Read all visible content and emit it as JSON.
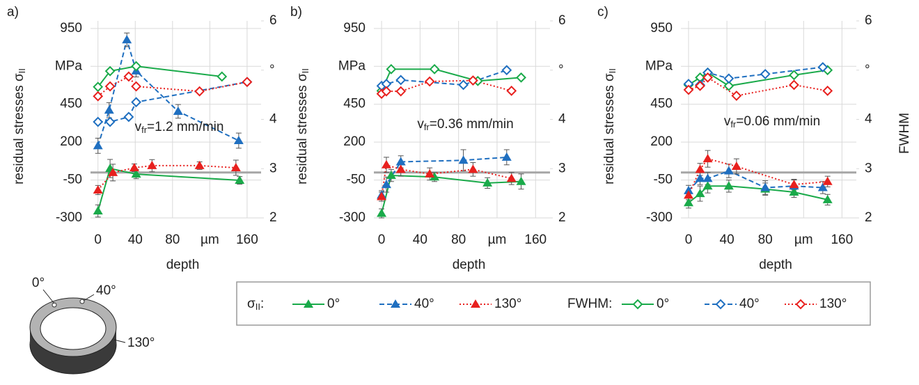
{
  "chart_data": [
    {
      "type": "line",
      "panel_label": "a)",
      "y_label_parts": [
        "residual stresses σ",
        "II"
      ],
      "x_label": "depth",
      "annotation_parts": [
        "v",
        "fr",
        "=1.2 mm/min"
      ],
      "xlim": [
        -8,
        175
      ],
      "xticks": [
        0,
        40,
        80,
        {
          "value": 120,
          "label": "µm"
        },
        160
      ],
      "ylim": [
        -300,
        1000
      ],
      "yticks": [
        -300,
        -50,
        200,
        450,
        {
          "value": 700,
          "label": "MPa"
        },
        950
      ],
      "y2lim": [
        2,
        6
      ],
      "y2ticks": [
        2,
        3,
        4,
        {
          "value": 5,
          "label": "°"
        },
        6
      ],
      "grid": true,
      "reference_line": 0,
      "reference_color": "#a6a6a6",
      "series": [
        {
          "name": "0°",
          "color": "#1aaa4a",
          "style": "solid",
          "marker": "triangle",
          "axis": "y",
          "x": [
            0,
            13,
            41,
            152
          ],
          "values": [
            -254,
            26,
            -11,
            -52
          ],
          "errors": [
            40,
            60,
            30,
            25
          ]
        },
        {
          "name": "40°",
          "color": "#1f6fc0",
          "style": "dashed",
          "marker": "triangle",
          "axis": "y",
          "x": [
            0,
            12,
            31,
            41,
            86,
            151
          ],
          "values": [
            176,
            411,
            875,
            670,
            403,
            210
          ],
          "errors": [
            50,
            50,
            45,
            40,
            45,
            50
          ]
        },
        {
          "name": "130°",
          "color": "#e8201e",
          "style": "dotted",
          "marker": "triangle",
          "axis": "y",
          "x": [
            0,
            16,
            39,
            58,
            109,
            148
          ],
          "values": [
            -116,
            -1,
            31,
            45,
            45,
            31
          ],
          "errors": [
            30,
            55,
            25,
            40,
            25,
            50
          ]
        },
        {
          "name": "0°",
          "color": "#1aaa4a",
          "style": "solid",
          "marker": "diamond",
          "axis": "y2",
          "x": [
            0,
            13,
            41,
            133
          ],
          "values": [
            4.66,
            4.98,
            5.08,
            4.87
          ]
        },
        {
          "name": "40°",
          "color": "#1f6fc0",
          "style": "dashed",
          "marker": "diamond",
          "axis": "y2",
          "x": [
            0,
            13,
            33,
            41,
            160
          ],
          "values": [
            3.95,
            3.95,
            4.05,
            4.35,
            4.76
          ]
        },
        {
          "name": "130°",
          "color": "#e8201e",
          "style": "dotted",
          "marker": "diamond",
          "axis": "y2",
          "x": [
            0,
            13,
            33,
            41,
            109,
            160
          ],
          "values": [
            4.47,
            4.67,
            4.87,
            4.67,
            4.57,
            4.76
          ]
        }
      ]
    },
    {
      "type": "line",
      "panel_label": "b)",
      "y_label_parts": [
        "residual stresses σ",
        "II"
      ],
      "x_label": "depth",
      "annotation_parts": [
        "v",
        "fr",
        "=0.36 mm/min"
      ],
      "xlim": [
        -8,
        175
      ],
      "xticks": [
        0,
        40,
        80,
        {
          "value": 120,
          "label": "µm"
        },
        160
      ],
      "ylim": [
        -300,
        1000
      ],
      "yticks": [
        -300,
        -50,
        200,
        450,
        {
          "value": 700,
          "label": "MPa"
        },
        950
      ],
      "y2lim": [
        2,
        6
      ],
      "y2ticks": [
        2,
        3,
        4,
        {
          "value": 5,
          "label": "°"
        },
        6
      ],
      "grid": true,
      "reference_line": 0,
      "reference_color": "#a6a6a6",
      "series": [
        {
          "name": "0°",
          "color": "#1aaa4a",
          "style": "solid",
          "marker": "triangle",
          "axis": "y",
          "x": [
            0,
            10,
            55,
            110,
            145
          ],
          "values": [
            -270,
            -20,
            -30,
            -70,
            -60
          ],
          "errors": [
            30,
            40,
            30,
            35,
            50
          ]
        },
        {
          "name": "40°",
          "color": "#1f6fc0",
          "style": "dashed",
          "marker": "triangle",
          "axis": "y",
          "x": [
            0,
            5,
            20,
            85,
            130
          ],
          "values": [
            -150,
            -80,
            70,
            80,
            100
          ],
          "errors": [
            30,
            50,
            40,
            70,
            50
          ]
        },
        {
          "name": "130°",
          "color": "#e8201e",
          "style": "dotted",
          "marker": "triangle",
          "axis": "y",
          "x": [
            0,
            5,
            20,
            50,
            95,
            135
          ],
          "values": [
            -160,
            50,
            20,
            -10,
            20,
            -40
          ],
          "errors": [
            30,
            50,
            45,
            40,
            45,
            40
          ]
        },
        {
          "name": "0°",
          "color": "#1aaa4a",
          "style": "solid",
          "marker": "diamond",
          "axis": "y2",
          "x": [
            0,
            10,
            55,
            100,
            145
          ],
          "values": [
            4.58,
            5.02,
            5.02,
            4.78,
            4.85
          ]
        },
        {
          "name": "40°",
          "color": "#1f6fc0",
          "style": "dashed",
          "marker": "diamond",
          "axis": "y2",
          "x": [
            0,
            5,
            20,
            85,
            130
          ],
          "values": [
            4.68,
            4.72,
            4.8,
            4.7,
            5.0
          ]
        },
        {
          "name": "130°",
          "color": "#e8201e",
          "style": "dotted",
          "marker": "diamond",
          "axis": "y2",
          "x": [
            0,
            5,
            20,
            50,
            95,
            135
          ],
          "values": [
            4.52,
            4.57,
            4.57,
            4.77,
            4.79,
            4.58
          ]
        }
      ]
    },
    {
      "type": "line",
      "panel_label": "c)",
      "y_label_parts": [
        "residual stresses σ",
        "II"
      ],
      "x_label": "depth",
      "y2_label": "FWHM",
      "annotation_parts": [
        "v",
        "fr",
        "=0.06 mm/min"
      ],
      "xlim": [
        -8,
        175
      ],
      "xticks": [
        0,
        40,
        80,
        {
          "value": 120,
          "label": "µm"
        },
        160
      ],
      "ylim": [
        -300,
        1000
      ],
      "yticks": [
        -300,
        -50,
        200,
        450,
        {
          "value": 700,
          "label": "MPa"
        },
        950
      ],
      "y2lim": [
        2,
        6
      ],
      "y2ticks": [
        2,
        3,
        4,
        {
          "value": 5,
          "label": "°"
        },
        6
      ],
      "grid": true,
      "reference_line": 0,
      "reference_color": "#a6a6a6",
      "series": [
        {
          "name": "0°",
          "color": "#1aaa4a",
          "style": "solid",
          "marker": "triangle",
          "axis": "y",
          "x": [
            0,
            12,
            20,
            42,
            80,
            110,
            145
          ],
          "values": [
            -200,
            -140,
            -90,
            -90,
            -110,
            -130,
            -180
          ],
          "errors": [
            35,
            50,
            45,
            40,
            40,
            35,
            35
          ]
        },
        {
          "name": "40°",
          "color": "#1f6fc0",
          "style": "dashed",
          "marker": "triangle",
          "axis": "y",
          "x": [
            0,
            12,
            20,
            42,
            80,
            110,
            140
          ],
          "values": [
            -120,
            -40,
            -40,
            10,
            -100,
            -90,
            -100
          ],
          "errors": [
            35,
            40,
            40,
            45,
            45,
            40,
            40
          ]
        },
        {
          "name": "130°",
          "color": "#e8201e",
          "style": "dotted",
          "marker": "triangle",
          "axis": "y",
          "x": [
            0,
            12,
            20,
            50,
            110,
            145
          ],
          "values": [
            -150,
            20,
            90,
            40,
            -80,
            -60
          ],
          "errors": [
            30,
            40,
            55,
            50,
            35,
            35
          ]
        },
        {
          "name": "0°",
          "color": "#1aaa4a",
          "style": "solid",
          "marker": "diamond",
          "axis": "y2",
          "x": [
            0,
            12,
            20,
            42,
            110,
            145
          ],
          "values": [
            4.7,
            4.85,
            4.95,
            4.68,
            4.9,
            5.0
          ]
        },
        {
          "name": "40°",
          "color": "#1f6fc0",
          "style": "dashed",
          "marker": "diamond",
          "axis": "y2",
          "x": [
            0,
            12,
            20,
            42,
            80,
            140
          ],
          "values": [
            4.72,
            4.7,
            4.95,
            4.83,
            4.92,
            5.06
          ]
        },
        {
          "name": "130°",
          "color": "#e8201e",
          "style": "dotted",
          "marker": "diamond",
          "axis": "y2",
          "x": [
            0,
            12,
            20,
            50,
            110,
            145
          ],
          "values": [
            4.6,
            4.68,
            4.85,
            4.48,
            4.7,
            4.58
          ]
        }
      ]
    }
  ],
  "legend": {
    "sigma_parts": [
      "σ",
      "II",
      ":"
    ],
    "fwhm_label": "FWHM:"
  },
  "ring_labels": [
    "0°",
    "40°",
    "130°"
  ]
}
